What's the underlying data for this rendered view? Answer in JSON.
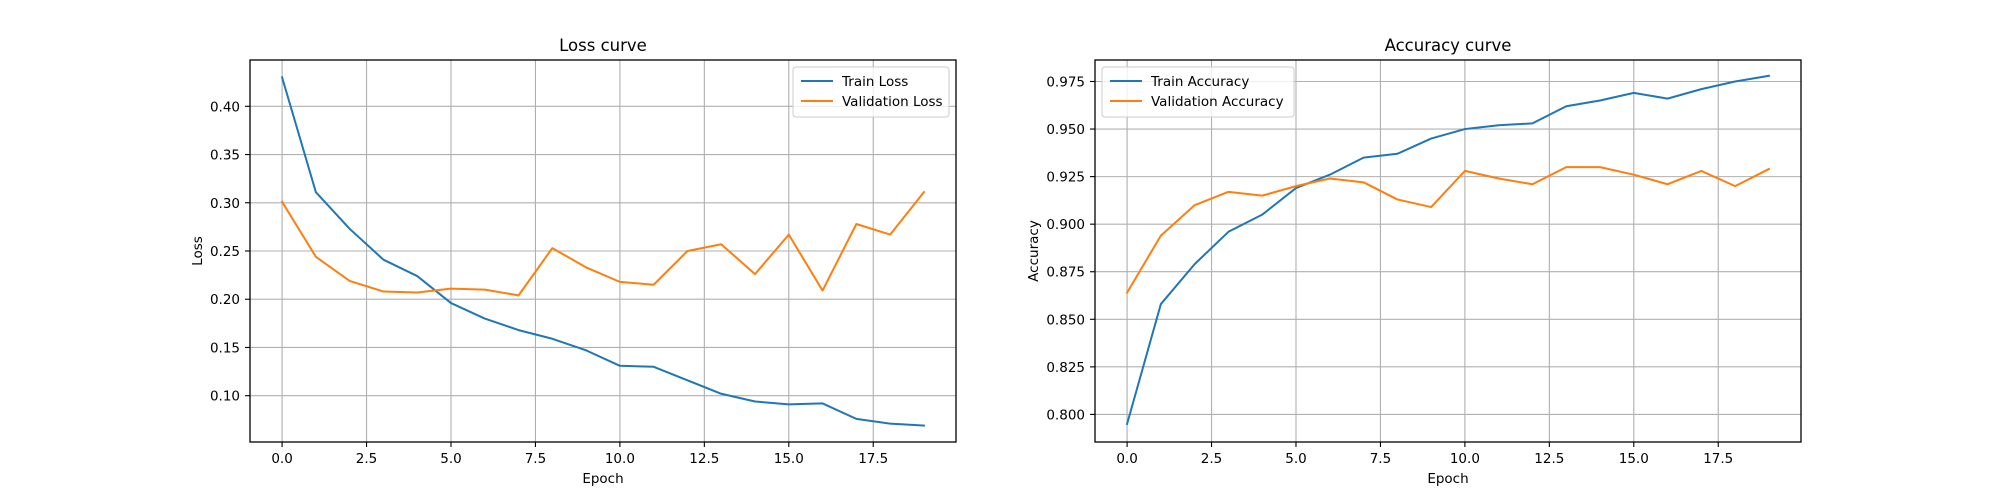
{
  "chart_data": [
    {
      "type": "line",
      "title": "Loss curve",
      "xlabel": "Epoch",
      "ylabel": "Loss",
      "xlim": [
        -0.95,
        19.95
      ],
      "ylim": [
        0.052,
        0.448
      ],
      "xticks": [
        "0.0",
        "2.5",
        "5.0",
        "7.5",
        "10.0",
        "12.5",
        "15.0",
        "17.5"
      ],
      "yticks": [
        "0.10",
        "0.15",
        "0.20",
        "0.25",
        "0.30",
        "0.35",
        "0.40"
      ],
      "grid": true,
      "legend_position": "upper right",
      "x": [
        0,
        1,
        2,
        3,
        4,
        5,
        6,
        7,
        8,
        9,
        10,
        11,
        12,
        13,
        14,
        15,
        16,
        17,
        18,
        19
      ],
      "series": [
        {
          "name": "Train Loss",
          "color": "#1f77b4",
          "values": [
            0.43,
            0.311,
            0.273,
            0.241,
            0.224,
            0.196,
            0.18,
            0.168,
            0.159,
            0.147,
            0.131,
            0.13,
            0.116,
            0.102,
            0.094,
            0.091,
            0.092,
            0.076,
            0.071,
            0.069
          ]
        },
        {
          "name": "Validation Loss",
          "color": "#ff7f0e",
          "values": [
            0.301,
            0.244,
            0.219,
            0.208,
            0.207,
            0.211,
            0.21,
            0.204,
            0.253,
            0.233,
            0.218,
            0.215,
            0.25,
            0.257,
            0.226,
            0.267,
            0.209,
            0.278,
            0.267,
            0.311
          ]
        }
      ]
    },
    {
      "type": "line",
      "title": "Accuracy curve",
      "xlabel": "Epoch",
      "ylabel": "Accuracy",
      "xlim": [
        -0.95,
        19.95
      ],
      "ylim": [
        0.7855,
        0.9863
      ],
      "xticks": [
        "0.0",
        "2.5",
        "5.0",
        "7.5",
        "10.0",
        "12.5",
        "15.0",
        "17.5"
      ],
      "yticks": [
        "0.800",
        "0.825",
        "0.850",
        "0.875",
        "0.900",
        "0.925",
        "0.950",
        "0.975"
      ],
      "grid": true,
      "legend_position": "upper left",
      "x": [
        0,
        1,
        2,
        3,
        4,
        5,
        6,
        7,
        8,
        9,
        10,
        11,
        12,
        13,
        14,
        15,
        16,
        17,
        18,
        19
      ],
      "series": [
        {
          "name": "Train Accuracy",
          "color": "#1f77b4",
          "values": [
            0.795,
            0.858,
            0.879,
            0.896,
            0.905,
            0.919,
            0.926,
            0.935,
            0.937,
            0.945,
            0.95,
            0.952,
            0.953,
            0.962,
            0.965,
            0.969,
            0.966,
            0.971,
            0.975,
            0.978
          ]
        },
        {
          "name": "Validation Accuracy",
          "color": "#ff7f0e",
          "values": [
            0.864,
            0.894,
            0.91,
            0.917,
            0.915,
            0.92,
            0.924,
            0.922,
            0.913,
            0.909,
            0.928,
            0.924,
            0.921,
            0.93,
            0.93,
            0.926,
            0.921,
            0.928,
            0.92,
            0.929
          ]
        }
      ]
    }
  ]
}
